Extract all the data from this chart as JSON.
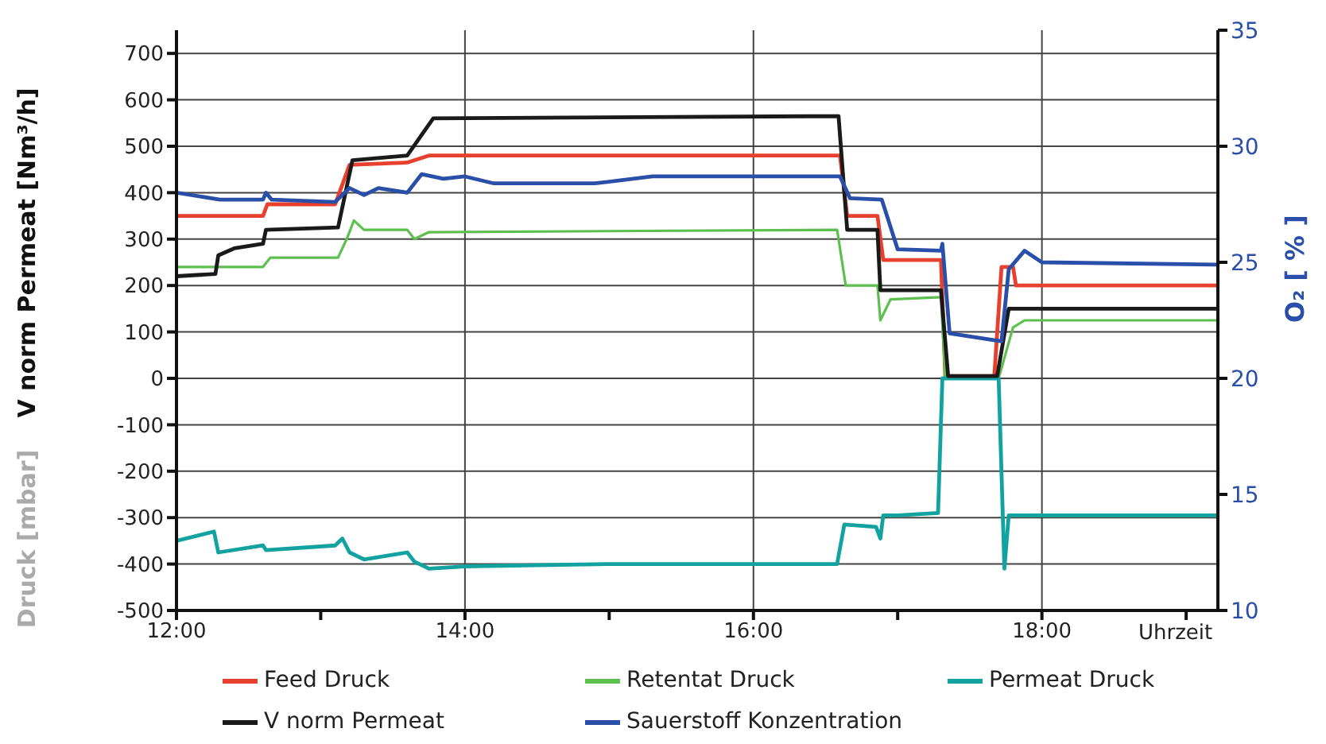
{
  "chart_data": {
    "type": "line",
    "xlabel": "Uhrzeit",
    "ylabel": "V norm Permeat [Nm³/h]",
    "y2label": "O₂ [ % ]",
    "annotations": [
      "Druck [mbar]"
    ],
    "xlim": [
      12,
      19.22
    ],
    "xticks": [
      {
        "value": 12,
        "label": "12:00"
      },
      {
        "value": 13,
        "label": null
      },
      {
        "value": 14,
        "label": "14:00"
      },
      {
        "value": 15,
        "label": null
      },
      {
        "value": 16,
        "label": "16:00"
      },
      {
        "value": 17,
        "label": null
      },
      {
        "value": 18,
        "label": "18:00"
      },
      {
        "value": 19,
        "label": null
      }
    ],
    "ylim": [
      -500,
      750
    ],
    "yticks": [
      -500,
      -400,
      -300,
      -200,
      -100,
      0,
      100,
      200,
      300,
      400,
      500,
      600,
      700
    ],
    "y2lim": [
      10,
      35
    ],
    "y2ticks": [
      10,
      15,
      20,
      25,
      30,
      35
    ],
    "grid": true,
    "legend": "bottom",
    "line_style": "solid",
    "series": [
      {
        "name": "Feed Druck",
        "color": "#e8402e",
        "x": [
          12,
          12.6,
          12.63,
          13.1,
          13.2,
          13.6,
          13.75,
          16.6,
          16.65,
          16.86,
          16.9,
          17.3,
          17.33,
          17.67,
          17.72,
          17.8,
          17.82,
          19.22
        ],
        "values": [
          350,
          350,
          375,
          375,
          460,
          465,
          480,
          480,
          350,
          350,
          255,
          255,
          5,
          5,
          240,
          240,
          200,
          200
        ]
      },
      {
        "name": "Retentat Druck",
        "color": "#5cbf4f",
        "x": [
          12,
          12.6,
          12.65,
          13.12,
          13.18,
          13.23,
          13.3,
          13.6,
          13.65,
          13.75,
          16.58,
          16.64,
          16.86,
          16.88,
          16.95,
          17.3,
          17.33,
          17.7,
          17.8,
          17.88,
          19.22
        ],
        "values": [
          240,
          240,
          260,
          260,
          300,
          340,
          320,
          320,
          300,
          315,
          320,
          200,
          200,
          125,
          170,
          175,
          0,
          0,
          110,
          125,
          125
        ]
      },
      {
        "name": "Permeat Druck",
        "color": "#12a3a0",
        "x": [
          12,
          12.26,
          12.29,
          12.6,
          12.62,
          13.1,
          13.15,
          13.2,
          13.3,
          13.6,
          13.65,
          13.75,
          14,
          15,
          16.58,
          16.63,
          16.85,
          16.88,
          16.9,
          17,
          17.28,
          17.31,
          17.7,
          17.74,
          17.77,
          19.22
        ],
        "values": [
          -350,
          -330,
          -375,
          -360,
          -370,
          -360,
          -345,
          -375,
          -390,
          -375,
          -395,
          -410,
          -405,
          -400,
          -400,
          -315,
          -320,
          -345,
          -295,
          -295,
          -290,
          0,
          0,
          -410,
          -295,
          -295
        ]
      },
      {
        "name": "V norm Permeat",
        "color": "#1a1a1a",
        "x": [
          12,
          12.27,
          12.29,
          12.4,
          12.6,
          12.62,
          13.12,
          13.22,
          13.6,
          13.78,
          16.59,
          16.65,
          16.86,
          16.88,
          17.3,
          17.35,
          17.69,
          17.77,
          19.22
        ],
        "values": [
          220,
          225,
          265,
          280,
          290,
          320,
          325,
          470,
          480,
          560,
          565,
          320,
          320,
          190,
          190,
          5,
          5,
          150,
          150
        ]
      },
      {
        "name": "Sauerstoff Konzentration",
        "color": "#2a4fa8",
        "axis": "y2",
        "x": [
          12,
          12.3,
          12.6,
          12.62,
          12.66,
          13.1,
          13.2,
          13.3,
          13.4,
          13.6,
          13.7,
          13.85,
          14,
          14.2,
          14.9,
          15.3,
          16.6,
          16.67,
          16.89,
          17,
          17.3,
          17.31,
          17.36,
          17.72,
          17.77,
          17.88,
          18,
          19.22
        ],
        "values": [
          28,
          27.7,
          27.7,
          28,
          27.7,
          27.6,
          28.2,
          27.9,
          28.2,
          28,
          28.8,
          28.6,
          28.7,
          28.4,
          28.4,
          28.7,
          28.7,
          27.76,
          27.7,
          25.56,
          25.5,
          25.8,
          21.94,
          21.6,
          24.7,
          25.5,
          25,
          24.9
        ]
      }
    ]
  }
}
